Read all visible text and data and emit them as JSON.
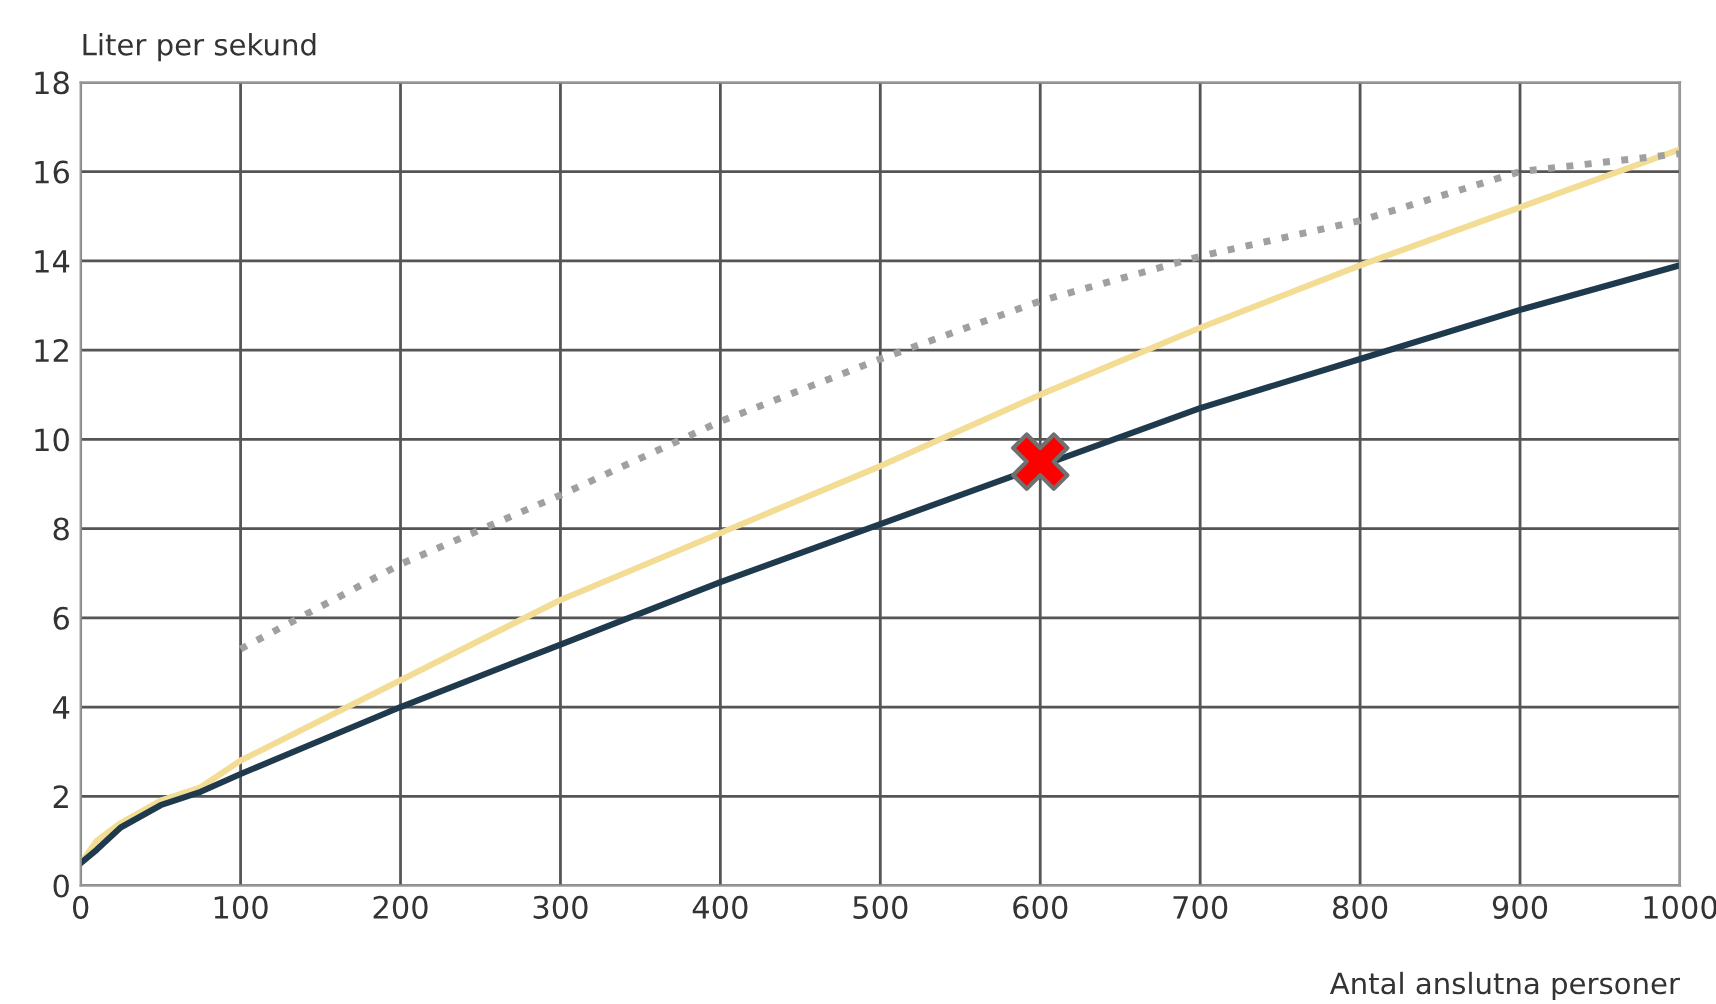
{
  "chart_data": {
    "type": "line",
    "ylabel": "Liter per sekund",
    "xlabel": "Antal anslutna personer",
    "xlim": [
      0,
      1000
    ],
    "ylim": [
      0,
      18
    ],
    "xticks": [
      0,
      100,
      200,
      300,
      400,
      500,
      600,
      700,
      800,
      900,
      1000
    ],
    "yticks": [
      0,
      2,
      4,
      6,
      8,
      10,
      12,
      14,
      16,
      18
    ],
    "grid": true,
    "legend": false,
    "series": [
      {
        "color": "#f3dc93",
        "line_style": "solid",
        "x": [
          0,
          10,
          25,
          50,
          75,
          100,
          200,
          300,
          400,
          500,
          600,
          700,
          800,
          900,
          1000
        ],
        "values": [
          0.5,
          1.0,
          1.4,
          1.9,
          2.2,
          2.8,
          4.6,
          6.4,
          7.9,
          9.4,
          11.0,
          12.5,
          13.9,
          15.2,
          16.5
        ]
      },
      {
        "color": "#1f3a4d",
        "line_style": "solid",
        "x": [
          0,
          10,
          25,
          50,
          75,
          100,
          200,
          300,
          400,
          500,
          600,
          700,
          800,
          900,
          1000
        ],
        "values": [
          0.5,
          0.8,
          1.3,
          1.8,
          2.1,
          2.5,
          4.0,
          5.4,
          6.8,
          8.1,
          9.4,
          10.7,
          11.8,
          12.9,
          13.9
        ]
      },
      {
        "color": "#a0a0a0",
        "line_style": "dotted",
        "x": [
          100,
          200,
          300,
          400,
          500,
          600,
          700,
          800,
          900,
          1000
        ],
        "values": [
          5.3,
          7.2,
          8.75,
          10.4,
          11.8,
          13.1,
          14.1,
          14.9,
          16.0,
          16.4
        ]
      },
      {
        "type": "scatter",
        "color": "#ff0000",
        "marker": "cross",
        "x": [
          600
        ],
        "values": [
          9.5
        ]
      }
    ]
  }
}
